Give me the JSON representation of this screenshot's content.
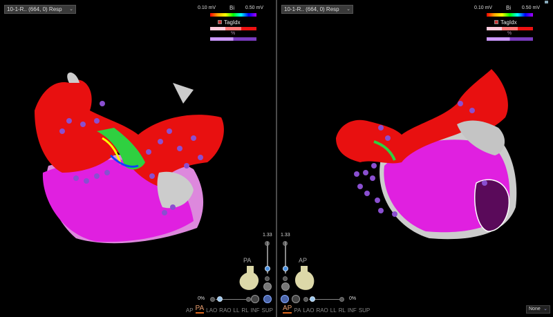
{
  "panels": [
    {
      "map_selector": "10-1-R.. (664, 0) Resp",
      "legend": {
        "min": "0.10 mV",
        "max": "0.50 mV",
        "mode": "Bi",
        "tag_label": "TagIdx",
        "pct_icon": "%"
      },
      "zoom": "1.33",
      "opacity": "0%",
      "orientation": "PA",
      "views": [
        "AP",
        "PA",
        "LAO",
        "RAO",
        "LL",
        "RL",
        "INF",
        "SUP"
      ],
      "active_view": "PA"
    },
    {
      "map_selector": "10-1-R.. (664, 0) Resp",
      "legend": {
        "min": "0.10 mV",
        "max": "0.50 mV",
        "mode": "Bi",
        "tag_label": "TagIdx",
        "pct_icon": "%"
      },
      "zoom": "1.33",
      "opacity": "0%",
      "orientation": "AP",
      "views": [
        "AP",
        "PA",
        "LAO",
        "RAO",
        "LL",
        "RL",
        "INF",
        "SUP"
      ],
      "active_view": "AP"
    }
  ],
  "bottom_dropdown": "None",
  "colors": {
    "low_voltage": "#e4e4e4",
    "scar": "#ff0000",
    "healthy": "#e020e0",
    "tag_sphere": "#8a4fd0",
    "active_view": "#e06a20"
  }
}
